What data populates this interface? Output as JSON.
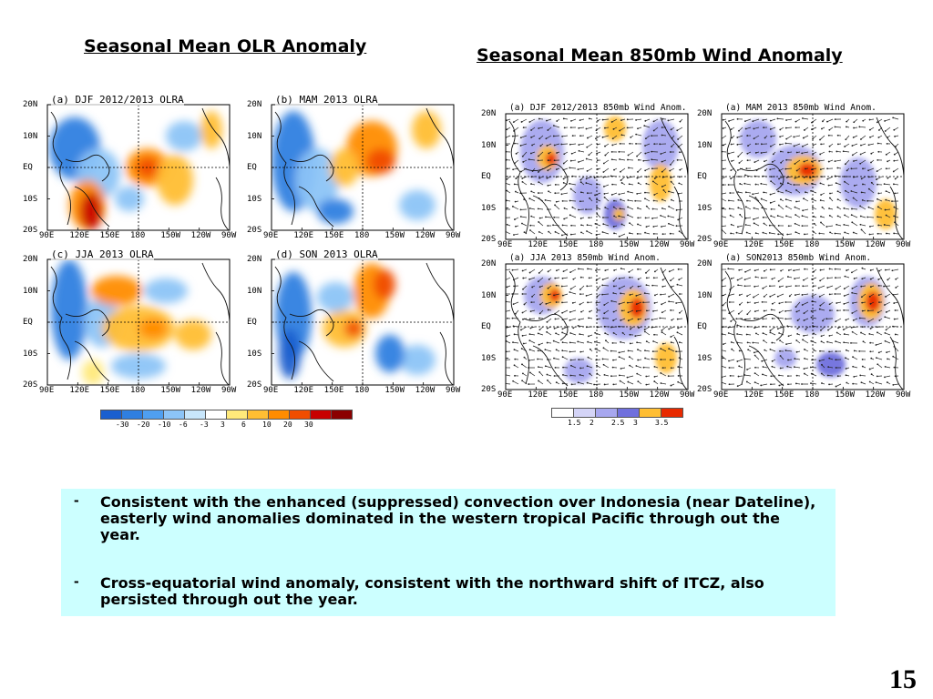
{
  "slide": {
    "olr_title": "Seasonal Mean OLR Anomaly",
    "wind_title": "Seasonal Mean 850mb Wind Anomaly",
    "page_number": "15",
    "bullet_dash": "-",
    "bullets": [
      "Consistent with the enhanced (suppressed) convection over Indonesia (near Dateline), easterly wind anomalies dominated in the western tropical Pacific through out the year.",
      "Cross-equatorial wind anomaly, consistent with the northward shift of ITCZ, also persisted through out the year."
    ]
  },
  "axes": {
    "lat_labels": [
      "20N",
      "10N",
      "EQ",
      "10S",
      "20S"
    ],
    "lon_labels": [
      "90E",
      "120E",
      "150E",
      "180",
      "150W",
      "120W",
      "90W"
    ]
  },
  "olr_panels": [
    {
      "title": "(a) DJF 2012/2013 OLRA"
    },
    {
      "title": "(b) MAM 2013 OLRA"
    },
    {
      "title": "(c) JJA 2013 OLRA"
    },
    {
      "title": "(d) SON 2013 OLRA"
    }
  ],
  "wind_panels": [
    {
      "title": "(a) DJF 2012/2013 850mb Wind Anom."
    },
    {
      "title": "(a) MAM 2013 850mb Wind Anom."
    },
    {
      "title": "(a) JJA 2013 850mb Wind Anom."
    },
    {
      "title": "(a) SON2013 850mb Wind Anom."
    }
  ],
  "olr_colorbar": {
    "labels": [
      "-30",
      "-20",
      "-10",
      "-6",
      "-3",
      "3",
      "6",
      "10",
      "20",
      "30"
    ],
    "colors": [
      "#1a5fcf",
      "#2f7fe0",
      "#4f9ff0",
      "#8cc4f7",
      "#c8e6fb",
      "#ffffff",
      "#ffe97a",
      "#ffbe33",
      "#ff8c00",
      "#f04d00",
      "#c80000",
      "#8b0000"
    ]
  },
  "wind_colorbar": {
    "labels": [
      "1.5",
      "2",
      "2.5",
      "3",
      "3.5"
    ],
    "colors": [
      "#ffffff",
      "#d4d4f7",
      "#a7a7ef",
      "#7070dd",
      "#ffbe33",
      "#e82a00"
    ]
  }
}
